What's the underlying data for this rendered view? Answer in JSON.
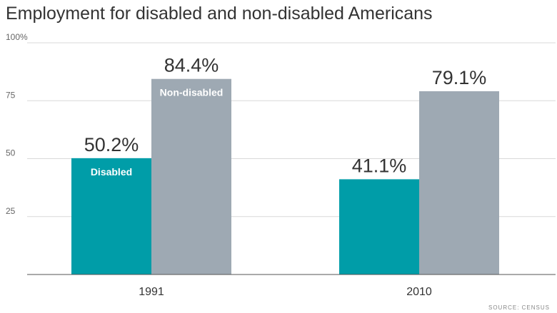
{
  "chart_data": {
    "type": "bar",
    "title": "Employment for disabled and non-disabled Americans",
    "source": "SOURCE: CENSUS",
    "categories": [
      "1991",
      "2010"
    ],
    "series": [
      {
        "name": "Disabled",
        "values": [
          50.2,
          41.1
        ],
        "value_labels": [
          "50.2%",
          "41.1%"
        ],
        "color": "#009da8"
      },
      {
        "name": "Non-disabled",
        "values": [
          84.4,
          79.1
        ],
        "value_labels": [
          "84.4%",
          "79.1%"
        ],
        "color": "#9ea9b3"
      }
    ],
    "yticks": [
      25,
      50,
      75,
      100
    ],
    "ytick_labels": [
      "25",
      "50",
      "75",
      "100%"
    ],
    "ylim": [
      0,
      100
    ],
    "xlabel": "",
    "ylabel": "",
    "grid": true,
    "legend": "inside-bars"
  }
}
